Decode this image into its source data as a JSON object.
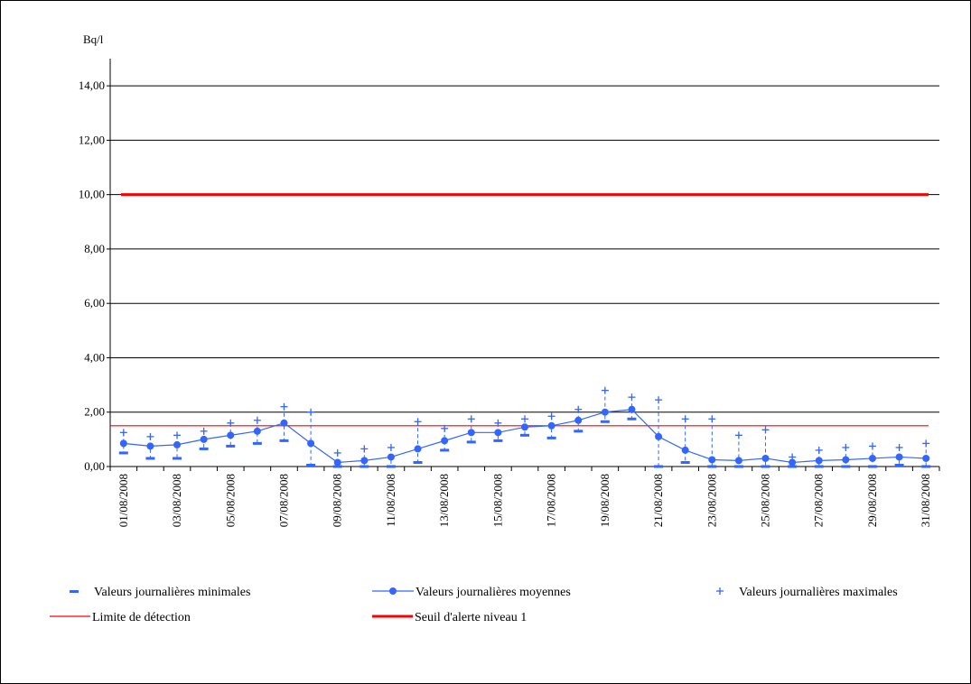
{
  "chart_data": {
    "type": "line",
    "ylabel": "Bq/l",
    "ylim": [
      0,
      15
    ],
    "yticks": [
      0,
      2,
      4,
      6,
      8,
      10,
      12,
      14
    ],
    "ytick_labels": [
      "0,00",
      "2,00",
      "4,00",
      "6,00",
      "8,00",
      "10,00",
      "12,00",
      "14,00"
    ],
    "grid": "horizontal",
    "legend_position": "bottom",
    "x": [
      "01/08/2008",
      "02/08/2008",
      "03/08/2008",
      "04/08/2008",
      "05/08/2008",
      "06/08/2008",
      "07/08/2008",
      "08/08/2008",
      "09/08/2008",
      "10/08/2008",
      "11/08/2008",
      "12/08/2008",
      "13/08/2008",
      "14/08/2008",
      "15/08/2008",
      "16/08/2008",
      "17/08/2008",
      "18/08/2008",
      "19/08/2008",
      "20/08/2008",
      "21/08/2008",
      "22/08/2008",
      "23/08/2008",
      "24/08/2008",
      "25/08/2008",
      "26/08/2008",
      "27/08/2008",
      "28/08/2008",
      "29/08/2008",
      "30/08/2008",
      "31/08/2008"
    ],
    "xtick_labels": [
      "01/08/2008",
      "03/08/2008",
      "05/08/2008",
      "07/08/2008",
      "09/08/2008",
      "11/08/2008",
      "13/08/2008",
      "15/08/2008",
      "17/08/2008",
      "19/08/2008",
      "21/08/2008",
      "23/08/2008",
      "25/08/2008",
      "27/08/2008",
      "29/08/2008",
      "31/08/2008"
    ],
    "series": [
      {
        "name": "Valeurs journalières minimales",
        "marker": "dash",
        "color": "#3366ff",
        "values": [
          0.5,
          0.3,
          0.3,
          0.65,
          0.75,
          0.85,
          0.95,
          0.05,
          0.0,
          0.0,
          0.0,
          0.15,
          0.6,
          0.9,
          0.95,
          1.15,
          1.05,
          1.3,
          1.65,
          1.75,
          0.0,
          0.15,
          0.0,
          0.0,
          0.0,
          0.0,
          0.0,
          0.0,
          0.0,
          0.05,
          0.0
        ]
      },
      {
        "name": "Valeurs journalières moyennes",
        "marker": "circle-line",
        "color": "#3366ff",
        "values": [
          0.85,
          0.75,
          0.8,
          1.0,
          1.15,
          1.3,
          1.6,
          0.85,
          0.15,
          0.22,
          0.35,
          0.65,
          0.95,
          1.25,
          1.25,
          1.45,
          1.5,
          1.7,
          2.0,
          2.1,
          1.1,
          0.6,
          0.25,
          0.22,
          0.3,
          0.15,
          0.22,
          0.25,
          0.3,
          0.35,
          0.3
        ]
      },
      {
        "name": "Valeurs journalières maximales",
        "marker": "plus",
        "color": "#3366ff",
        "values": [
          1.25,
          1.1,
          1.15,
          1.3,
          1.6,
          1.7,
          2.2,
          2.0,
          0.5,
          0.65,
          0.7,
          1.65,
          1.4,
          1.75,
          1.6,
          1.75,
          1.85,
          2.1,
          2.8,
          2.55,
          2.45,
          1.75,
          1.75,
          1.15,
          1.35,
          0.35,
          0.6,
          0.7,
          0.75,
          0.7,
          0.85
        ]
      },
      {
        "name": "Limite de détection",
        "marker": "line",
        "color": "#ff0000",
        "value": 1.5
      },
      {
        "name": "Seuil d'alerte niveau 1",
        "marker": "thick-line",
        "color": "#ff0000",
        "value": 10
      }
    ]
  }
}
